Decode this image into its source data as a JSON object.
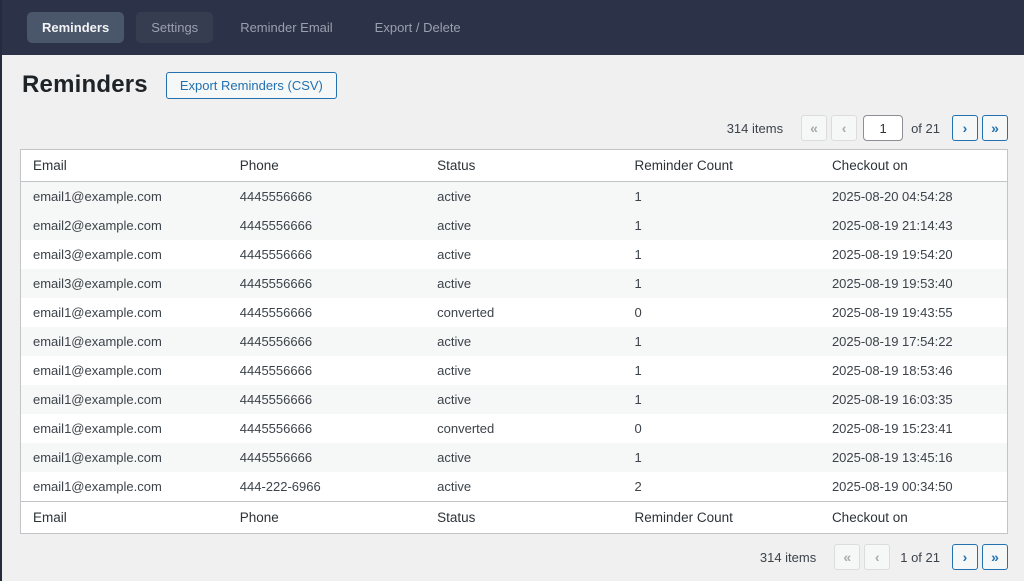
{
  "colors": {
    "accent": "#2271b1",
    "navbar_bg": "#2c3247",
    "active_tab_bg": "#4a566a",
    "stripe_bg": "#f6f7f7"
  },
  "nav": {
    "tabs": [
      {
        "label": "Reminders",
        "active": true
      },
      {
        "label": "Settings",
        "active": false
      },
      {
        "label": "Reminder Email",
        "active": false
      },
      {
        "label": "Export / Delete",
        "active": false
      }
    ]
  },
  "page": {
    "title": "Reminders",
    "export_button": "Export Reminders (CSV)"
  },
  "pagination": {
    "top": {
      "items": "314 items",
      "first": "«",
      "prev": "‹",
      "current_page": "1",
      "of_label": "of 21",
      "next": "›",
      "last": "»"
    },
    "bottom": {
      "items": "314 items",
      "first": "«",
      "prev": "‹",
      "page_label": "1 of 21",
      "next": "›",
      "last": "»"
    }
  },
  "table": {
    "columns": [
      "Email",
      "Phone",
      "Status",
      "Reminder Count",
      "Checkout on"
    ],
    "rows": [
      {
        "email": "email1@example.com",
        "phone": "4445556666",
        "status": "active",
        "count": "1",
        "checkout": "2025-08-20 04:54:28"
      },
      {
        "email": "email2@example.com",
        "phone": "4445556666",
        "status": "active",
        "count": "1",
        "checkout": "2025-08-19 21:14:43"
      },
      {
        "email": "email3@example.com",
        "phone": "4445556666",
        "status": "active",
        "count": "1",
        "checkout": "2025-08-19 19:54:20"
      },
      {
        "email": "email3@example.com",
        "phone": "4445556666",
        "status": "active",
        "count": "1",
        "checkout": "2025-08-19 19:53:40"
      },
      {
        "email": "email1@example.com",
        "phone": "4445556666",
        "status": "converted",
        "count": "0",
        "checkout": "2025-08-19 19:43:55"
      },
      {
        "email": "email1@example.com",
        "phone": "4445556666",
        "status": "active",
        "count": "1",
        "checkout": "2025-08-19 17:54:22"
      },
      {
        "email": "email1@example.com",
        "phone": "4445556666",
        "status": "active",
        "count": "1",
        "checkout": "2025-08-19 18:53:46"
      },
      {
        "email": "email1@example.com",
        "phone": "4445556666",
        "status": "active",
        "count": "1",
        "checkout": "2025-08-19 16:03:35"
      },
      {
        "email": "email1@example.com",
        "phone": "4445556666",
        "status": "converted",
        "count": "0",
        "checkout": "2025-08-19 15:23:41"
      },
      {
        "email": "email1@example.com",
        "phone": "4445556666",
        "status": "active",
        "count": "1",
        "checkout": "2025-08-19 13:45:16"
      },
      {
        "email": "email1@example.com",
        "phone": "444-222-6966",
        "status": "active",
        "count": "2",
        "checkout": "2025-08-19 00:34:50"
      }
    ]
  }
}
